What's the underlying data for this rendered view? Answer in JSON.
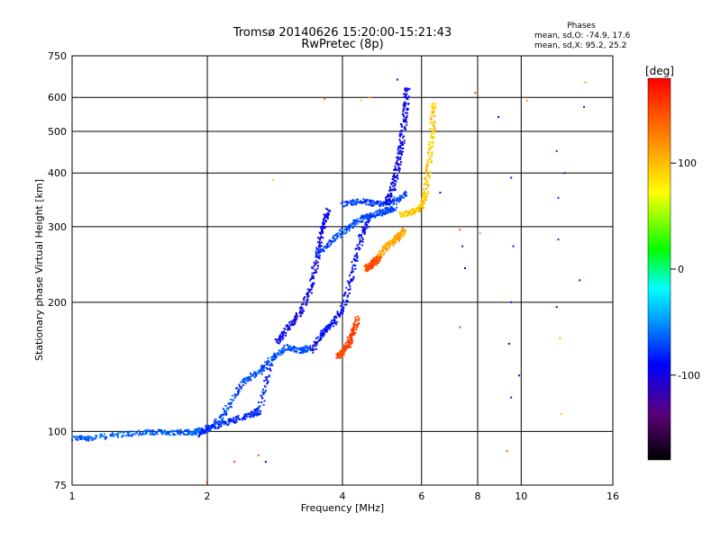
{
  "chart_data": {
    "type": "scatter",
    "title": "Tromsø 20140626 15:20:00-15:21:43",
    "subtitle": "RwPretec (8p)",
    "xlabel": "Frequency [MHz]",
    "ylabel": "Stationary phase Virtual Height [km]",
    "x_scale": "log",
    "y_scale": "log",
    "xlim": [
      1,
      16
    ],
    "ylim": [
      75,
      750
    ],
    "x_ticks": [
      1,
      2,
      4,
      6,
      8,
      10,
      16
    ],
    "x_tick_labels": [
      "1",
      "2",
      "4",
      "6",
      "8",
      "10",
      "16"
    ],
    "y_ticks": [
      75,
      100,
      200,
      300,
      400,
      500,
      600,
      750
    ],
    "y_tick_labels": [
      "75",
      "100",
      "200",
      "300",
      "400",
      "500",
      "600",
      "750"
    ],
    "grid": true,
    "phase_info": {
      "heading": "Phases",
      "line_o": "mean, sd,O: -74.9, 17.6",
      "line_x": "mean, sd,X:  95.2, 25.2"
    },
    "colorbar": {
      "label": "[deg]",
      "range": [
        -180,
        180
      ],
      "ticks": [
        100,
        0,
        -100
      ],
      "tick_labels": [
        "100",
        "0",
        "-100"
      ]
    },
    "traces": [
      {
        "x": [
          1.0,
          1.1,
          1.3,
          1.5,
          1.7,
          1.85,
          1.95,
          2.05
        ],
        "y": [
          97,
          97,
          99,
          100,
          100,
          100,
          101,
          103
        ],
        "phase": -65
      },
      {
        "x": [
          2.05,
          2.2,
          2.4,
          2.6,
          2.8,
          3.0,
          3.2,
          3.35
        ],
        "y": [
          103,
          113,
          132,
          138,
          150,
          158,
          155,
          157
        ],
        "phase": -68
      },
      {
        "x": [
          1.9,
          2.1,
          2.3,
          2.5,
          2.6,
          2.75
        ],
        "y": [
          99,
          104,
          107,
          110,
          112,
          145
        ],
        "phase": -80
      },
      {
        "x": [
          2.85,
          3.0,
          3.2,
          3.4,
          3.5,
          3.6,
          3.7
        ],
        "y": [
          162,
          175,
          190,
          220,
          260,
          300,
          330
        ],
        "phase": -95
      },
      {
        "x": [
          3.4,
          3.6,
          3.8,
          4.0,
          4.2,
          4.4,
          4.6
        ],
        "y": [
          155,
          170,
          180,
          195,
          240,
          290,
          320
        ],
        "phase": -90
      },
      {
        "x": [
          3.5,
          3.8,
          4.1,
          4.4,
          4.7,
          5.0,
          5.2
        ],
        "y": [
          260,
          280,
          300,
          315,
          322,
          328,
          332
        ],
        "phase": -70
      },
      {
        "x": [
          4.0,
          4.4,
          4.8,
          5.2,
          5.5
        ],
        "y": [
          340,
          345,
          340,
          345,
          360
        ],
        "phase": -75
      },
      {
        "x": [
          5.0,
          5.15,
          5.3,
          5.4,
          5.5,
          5.55
        ],
        "y": [
          340,
          370,
          420,
          480,
          560,
          640
        ],
        "phase": -95
      },
      {
        "x": [
          5.4,
          5.7,
          5.95,
          6.1,
          6.2,
          6.3,
          6.35
        ],
        "y": [
          322,
          325,
          335,
          360,
          420,
          500,
          590
        ],
        "phase": 95
      },
      {
        "x": [
          4.5,
          4.7,
          4.9,
          5.1,
          5.3,
          5.5
        ],
        "y": [
          240,
          250,
          265,
          275,
          285,
          295
        ],
        "phase": 110
      },
      {
        "x": [
          4.5,
          4.6,
          4.7,
          4.8
        ],
        "y": [
          240,
          245,
          250,
          255
        ],
        "phase": 150
      },
      {
        "x": [
          3.9,
          4.0,
          4.1,
          4.2,
          4.3
        ],
        "y": [
          150,
          155,
          160,
          170,
          185
        ],
        "phase": 150
      }
    ],
    "scatter_points": [
      {
        "x": 2.0,
        "y": 76,
        "phase": 160
      },
      {
        "x": 2.3,
        "y": 85,
        "phase": 150
      },
      {
        "x": 2.6,
        "y": 88,
        "phase": 150
      },
      {
        "x": 2.7,
        "y": 85,
        "phase": -100
      },
      {
        "x": 2.8,
        "y": 385,
        "phase": 95
      },
      {
        "x": 3.65,
        "y": 595,
        "phase": 130
      },
      {
        "x": 4.4,
        "y": 590,
        "phase": 95
      },
      {
        "x": 4.6,
        "y": 600,
        "phase": 100
      },
      {
        "x": 5.3,
        "y": 660,
        "phase": -95
      },
      {
        "x": 6.6,
        "y": 360,
        "phase": -100
      },
      {
        "x": 7.3,
        "y": 295,
        "phase": 150
      },
      {
        "x": 7.4,
        "y": 270,
        "phase": -110
      },
      {
        "x": 7.5,
        "y": 240,
        "phase": -110
      },
      {
        "x": 7.3,
        "y": 175,
        "phase": 150
      },
      {
        "x": 8.1,
        "y": 290,
        "phase": 110
      },
      {
        "x": 7.9,
        "y": 615,
        "phase": 150
      },
      {
        "x": 9.5,
        "y": 390,
        "phase": -100
      },
      {
        "x": 9.6,
        "y": 270,
        "phase": -90
      },
      {
        "x": 9.5,
        "y": 200,
        "phase": -85
      },
      {
        "x": 9.4,
        "y": 160,
        "phase": -100
      },
      {
        "x": 9.5,
        "y": 120,
        "phase": -85
      },
      {
        "x": 9.3,
        "y": 90,
        "phase": 150
      },
      {
        "x": 9.9,
        "y": 135,
        "phase": -110
      },
      {
        "x": 10.3,
        "y": 590,
        "phase": 110
      },
      {
        "x": 12.0,
        "y": 450,
        "phase": -80
      },
      {
        "x": 12.1,
        "y": 350,
        "phase": -75
      },
      {
        "x": 12.1,
        "y": 280,
        "phase": -80
      },
      {
        "x": 12.0,
        "y": 195,
        "phase": -100
      },
      {
        "x": 12.2,
        "y": 165,
        "phase": 40
      },
      {
        "x": 12.3,
        "y": 110,
        "phase": 100
      },
      {
        "x": 12.5,
        "y": 400,
        "phase": -80
      },
      {
        "x": 13.5,
        "y": 225,
        "phase": -90
      },
      {
        "x": 13.8,
        "y": 570,
        "phase": -80
      },
      {
        "x": 13.9,
        "y": 650,
        "phase": 110
      },
      {
        "x": 8.9,
        "y": 540,
        "phase": -90
      }
    ]
  }
}
